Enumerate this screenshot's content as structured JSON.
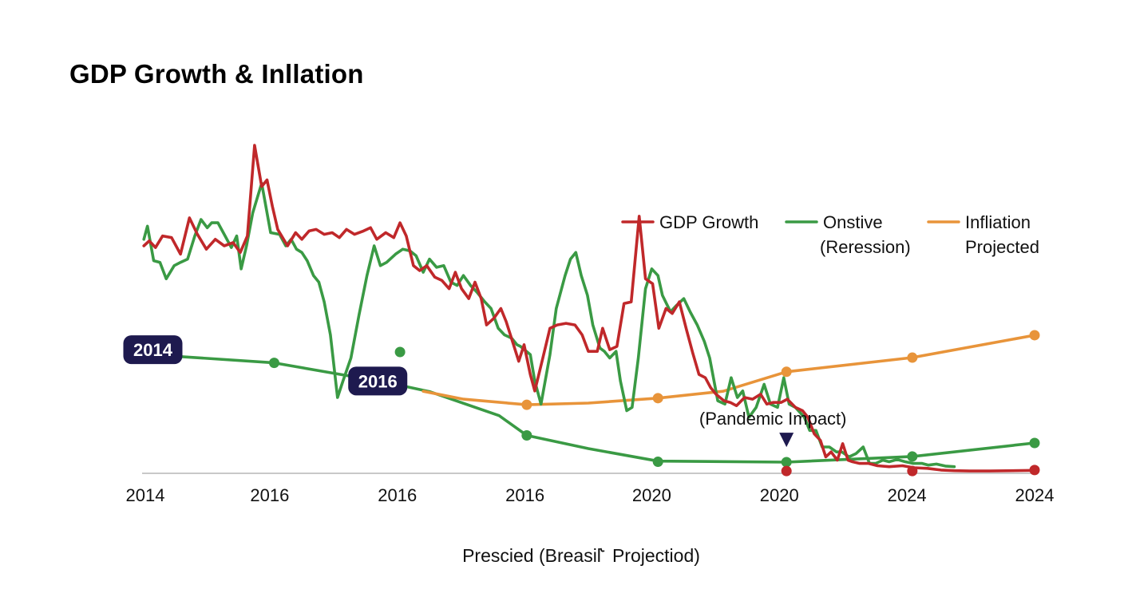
{
  "chart_data": {
    "type": "line",
    "title": "GDP Growth & Inllation",
    "xlabel": "Prescied (Breasil˞ Projectiod)",
    "ylabel": "",
    "x_scale": "index 0-100 across plot width",
    "ylim": [
      0,
      100
    ],
    "grid": false,
    "legend_position": "top-right",
    "x_tick_labels": [
      "2014",
      "2016",
      "2016",
      "2016",
      "2020",
      "2020",
      "2024",
      "2024"
    ],
    "x_tick_positions": [
      0,
      14.3,
      28.6,
      42.9,
      57.1,
      71.4,
      85.7,
      100
    ],
    "legend": [
      {
        "name": "GDP Growth",
        "color": "#c0282a"
      },
      {
        "name": "Onstive (Reression)",
        "color": "#3a9a44"
      },
      {
        "name": "Infliation Projected",
        "color": "#e8943a"
      }
    ],
    "series": [
      {
        "name": "GDP Growth",
        "color": "#c0282a",
        "points": [
          [
            0.2,
            69
          ],
          [
            0.8,
            70.5
          ],
          [
            1.5,
            68.5
          ],
          [
            2.3,
            72
          ],
          [
            3.3,
            71.5
          ],
          [
            4.3,
            66.5
          ],
          [
            5.3,
            77.5
          ],
          [
            6.2,
            72.5
          ],
          [
            7.2,
            68
          ],
          [
            8.2,
            71
          ],
          [
            9.2,
            69
          ],
          [
            10.2,
            70
          ],
          [
            11.0,
            67
          ],
          [
            11.8,
            72
          ],
          [
            12.6,
            99.5
          ],
          [
            13.4,
            87
          ],
          [
            14.0,
            89
          ],
          [
            14.6,
            81
          ],
          [
            15.2,
            74
          ],
          [
            16.3,
            69
          ],
          [
            17.2,
            73
          ],
          [
            17.9,
            71
          ],
          [
            18.7,
            73.5
          ],
          [
            19.5,
            74
          ],
          [
            20.4,
            72.5
          ],
          [
            21.3,
            73
          ],
          [
            22.1,
            71.5
          ],
          [
            22.9,
            74
          ],
          [
            23.8,
            72.5
          ],
          [
            24.8,
            73.5
          ],
          [
            25.6,
            74.5
          ],
          [
            26.3,
            71
          ],
          [
            27.3,
            73
          ],
          [
            28.2,
            71.5
          ],
          [
            28.9,
            76
          ],
          [
            29.6,
            72
          ],
          [
            30.4,
            63
          ],
          [
            31.1,
            61.5
          ],
          [
            31.9,
            63
          ],
          [
            32.8,
            59.5
          ],
          [
            33.6,
            58.5
          ],
          [
            34.4,
            56
          ],
          [
            35.1,
            61
          ],
          [
            35.8,
            56
          ],
          [
            36.6,
            53
          ],
          [
            37.3,
            58
          ],
          [
            38.0,
            53
          ],
          [
            38.6,
            45
          ],
          [
            39.4,
            47
          ],
          [
            40.2,
            50
          ],
          [
            40.8,
            46
          ],
          [
            41.5,
            40
          ],
          [
            42.2,
            34
          ],
          [
            42.8,
            39
          ],
          [
            43.5,
            30
          ],
          [
            44.0,
            25
          ],
          [
            44.9,
            35
          ],
          [
            45.7,
            44
          ],
          [
            46.5,
            45
          ],
          [
            47.5,
            45.5
          ],
          [
            48.5,
            45
          ],
          [
            49.3,
            42
          ],
          [
            50.0,
            37
          ],
          [
            51.0,
            37
          ],
          [
            51.6,
            44
          ],
          [
            52.4,
            37.5
          ],
          [
            53.2,
            38.5
          ],
          [
            54.0,
            51.5
          ],
          [
            54.8,
            52
          ],
          [
            55.7,
            78
          ],
          [
            56.4,
            59
          ],
          [
            57.2,
            57.5
          ],
          [
            57.9,
            44
          ],
          [
            58.7,
            50
          ],
          [
            59.4,
            48.5
          ],
          [
            60.2,
            52
          ],
          [
            61.0,
            43.5
          ],
          [
            61.7,
            36.5
          ],
          [
            62.4,
            30
          ],
          [
            63.1,
            29
          ],
          [
            63.7,
            26
          ],
          [
            64.3,
            24
          ],
          [
            65.2,
            22
          ],
          [
            65.9,
            21.5
          ],
          [
            66.6,
            20.5
          ],
          [
            67.5,
            23
          ],
          [
            68.4,
            22.5
          ],
          [
            69.3,
            24
          ],
          [
            70.0,
            21
          ],
          [
            70.7,
            21.5
          ],
          [
            71.6,
            21.5
          ],
          [
            72.3,
            22.5
          ],
          [
            73.2,
            20
          ],
          [
            74.0,
            19
          ],
          [
            74.6,
            17
          ],
          [
            75.3,
            12
          ],
          [
            76.0,
            10
          ],
          [
            76.6,
            5
          ],
          [
            77.2,
            6.5
          ],
          [
            77.9,
            4
          ],
          [
            78.5,
            9
          ],
          [
            79.1,
            4
          ],
          [
            79.6,
            3.5
          ],
          [
            80.4,
            3
          ],
          [
            81.4,
            3
          ],
          [
            82.4,
            2.3
          ],
          [
            83.7,
            2
          ],
          [
            85.2,
            2.3
          ],
          [
            86.5,
            1.7
          ],
          [
            88.0,
            1.5
          ],
          [
            89.5,
            1.0
          ],
          [
            91.0,
            0.8
          ],
          [
            92.7,
            0.7
          ],
          [
            95.0,
            0.7
          ],
          [
            100,
            0.9
          ]
        ],
        "markers": [
          [
            72.2,
            0.7
          ],
          [
            86.3,
            0.7
          ],
          [
            100,
            1.0
          ]
        ]
      },
      {
        "name": "Onstive (Reression)",
        "color": "#3a9a44",
        "points": [
          [
            0.2,
            71
          ],
          [
            0.6,
            75
          ],
          [
            1.3,
            64.5
          ],
          [
            2.0,
            64
          ],
          [
            2.7,
            59
          ],
          [
            3.6,
            63
          ],
          [
            4.3,
            64
          ],
          [
            5.1,
            65
          ],
          [
            5.9,
            72
          ],
          [
            6.6,
            77
          ],
          [
            7.3,
            74.5
          ],
          [
            7.8,
            76
          ],
          [
            8.5,
            76
          ],
          [
            9.2,
            72.5
          ],
          [
            10.0,
            68.5
          ],
          [
            10.6,
            72
          ],
          [
            11.1,
            62
          ],
          [
            11.7,
            69
          ],
          [
            12.4,
            79
          ],
          [
            13.4,
            88
          ],
          [
            14.4,
            73
          ],
          [
            15.4,
            72.5
          ],
          [
            16.1,
            69
          ],
          [
            16.7,
            71
          ],
          [
            17.3,
            68
          ],
          [
            17.9,
            67
          ],
          [
            18.5,
            64.5
          ],
          [
            19.2,
            60
          ],
          [
            19.8,
            58
          ],
          [
            20.4,
            52
          ],
          [
            21.1,
            42
          ],
          [
            21.9,
            23
          ],
          [
            22.5,
            28
          ],
          [
            23.4,
            35
          ],
          [
            24.3,
            48
          ],
          [
            25.2,
            60
          ],
          [
            26.0,
            69
          ],
          [
            26.7,
            63
          ],
          [
            27.4,
            64
          ],
          [
            28.4,
            66.5
          ],
          [
            29.2,
            68
          ],
          [
            30.0,
            67.5
          ],
          [
            30.7,
            66
          ],
          [
            31.5,
            61
          ],
          [
            32.2,
            65
          ],
          [
            33.0,
            62.5
          ],
          [
            33.8,
            63
          ],
          [
            34.6,
            58
          ],
          [
            35.3,
            57
          ],
          [
            36.0,
            60
          ],
          [
            36.8,
            57
          ],
          [
            37.5,
            55
          ],
          [
            38.4,
            52
          ],
          [
            39.1,
            50
          ],
          [
            39.9,
            44
          ],
          [
            40.6,
            42
          ],
          [
            41.4,
            41
          ],
          [
            42.0,
            39
          ],
          [
            42.4,
            38.5
          ],
          [
            43.5,
            36
          ],
          [
            44.0,
            28
          ],
          [
            44.7,
            21
          ],
          [
            45.7,
            36
          ],
          [
            46.4,
            50
          ],
          [
            47.4,
            60
          ],
          [
            48.0,
            65
          ],
          [
            48.6,
            67
          ],
          [
            49.2,
            60
          ],
          [
            49.9,
            54
          ],
          [
            50.5,
            45
          ],
          [
            51.3,
            38
          ],
          [
            51.8,
            37
          ],
          [
            52.4,
            35
          ],
          [
            53.1,
            37
          ],
          [
            53.6,
            28
          ],
          [
            54.3,
            19
          ],
          [
            54.9,
            20
          ],
          [
            55.6,
            35
          ],
          [
            56.4,
            56
          ],
          [
            57.1,
            62
          ],
          [
            57.8,
            60
          ],
          [
            58.3,
            54
          ],
          [
            59.2,
            49
          ],
          [
            59.9,
            51
          ],
          [
            60.7,
            53
          ],
          [
            61.4,
            49
          ],
          [
            62.2,
            45
          ],
          [
            63.0,
            40
          ],
          [
            63.6,
            35
          ],
          [
            64.5,
            22
          ],
          [
            65.3,
            21
          ],
          [
            66.0,
            29
          ],
          [
            66.7,
            23
          ],
          [
            67.3,
            25
          ],
          [
            68.0,
            17
          ],
          [
            68.8,
            20
          ],
          [
            69.7,
            27
          ],
          [
            70.4,
            21
          ],
          [
            71.2,
            20
          ],
          [
            71.9,
            29
          ],
          [
            72.5,
            21
          ],
          [
            73.2,
            20
          ],
          [
            74.2,
            17
          ],
          [
            74.8,
            13
          ],
          [
            75.5,
            13
          ],
          [
            76.2,
            8
          ],
          [
            77.0,
            8
          ],
          [
            77.8,
            6.5
          ],
          [
            78.4,
            6.5
          ],
          [
            79.2,
            5
          ],
          [
            80.0,
            6
          ],
          [
            80.8,
            8
          ],
          [
            81.5,
            3
          ],
          [
            82.2,
            3
          ],
          [
            83.0,
            4
          ],
          [
            83.7,
            3.5
          ],
          [
            84.6,
            4.2
          ],
          [
            85.5,
            3.5
          ],
          [
            86.4,
            3
          ],
          [
            87.4,
            3
          ],
          [
            88.1,
            2.5
          ],
          [
            89.0,
            2.8
          ],
          [
            90.0,
            2.2
          ],
          [
            91.0,
            2
          ]
        ],
        "markers": []
      },
      {
        "name": "Onstive (Reression) trend",
        "color": "#3a9a44",
        "points": [
          [
            3.8,
            35.5
          ],
          [
            14.8,
            33.5
          ],
          [
            27.5,
            27.5
          ],
          [
            32.2,
            24.8
          ],
          [
            40.0,
            17.5
          ],
          [
            43.1,
            11.5
          ],
          [
            50.0,
            7.5
          ],
          [
            57.8,
            3.7
          ],
          [
            72.2,
            3.4
          ],
          [
            86.3,
            5.1
          ],
          [
            100,
            9.2
          ]
        ],
        "markers": [
          [
            14.8,
            33.5
          ],
          [
            28.9,
            36.8
          ],
          [
            43.1,
            11.5
          ],
          [
            57.8,
            3.5
          ],
          [
            72.2,
            3.4
          ],
          [
            86.3,
            5.1
          ],
          [
            100,
            9.2
          ]
        ]
      },
      {
        "name": "Infliation Projected",
        "color": "#e8943a",
        "points": [
          [
            31.5,
            24.9
          ],
          [
            36.0,
            22.5
          ],
          [
            43.1,
            20.8
          ],
          [
            50.0,
            21.3
          ],
          [
            57.8,
            22.8
          ],
          [
            65.1,
            24.9
          ],
          [
            72.2,
            30.8
          ],
          [
            86.3,
            35.1
          ],
          [
            100,
            41.9
          ]
        ],
        "markers": [
          [
            43.1,
            20.8
          ],
          [
            57.8,
            22.8
          ],
          [
            72.2,
            30.8
          ],
          [
            86.3,
            35.1
          ],
          [
            100,
            41.9
          ]
        ]
      }
    ],
    "annotations": [
      {
        "text": "2014",
        "x": 3.8,
        "y": 37.5,
        "style": "badge"
      },
      {
        "text": "2016",
        "x": 29.0,
        "y": 28.0,
        "style": "badge"
      },
      {
        "text": "(Pandemic Impact)",
        "x": 72.2,
        "y": 14.0,
        "style": "text-with-marker"
      }
    ]
  },
  "colors": {
    "badge_bg": "#1e1a4f",
    "axis": "#c8c8c8",
    "marker_triangle": "#1e1a4f"
  }
}
